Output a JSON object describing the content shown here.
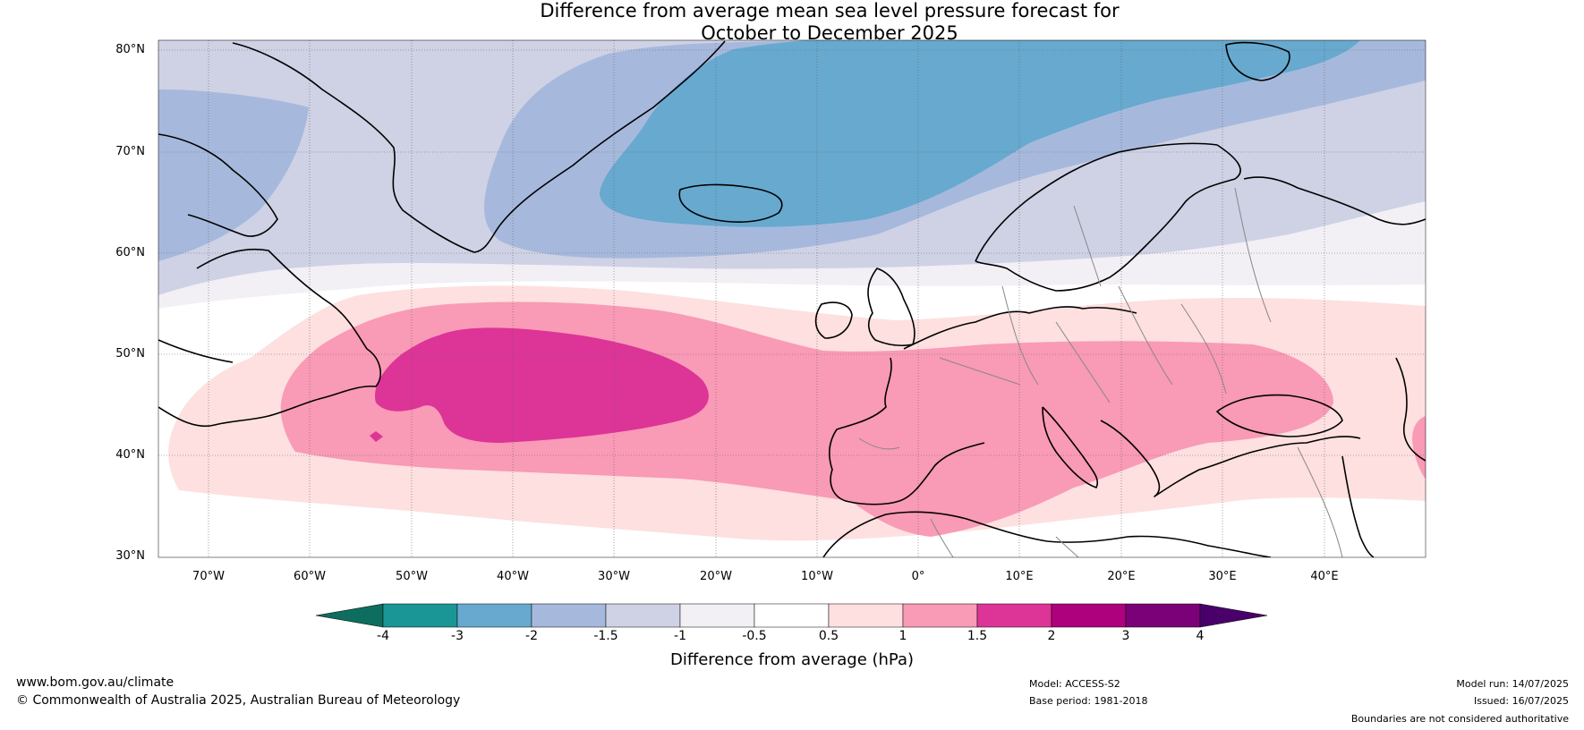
{
  "title": {
    "line1": "Difference from average mean sea level pressure forecast for",
    "line2": "October to December 2025"
  },
  "map": {
    "lat_labels": [
      "80°N",
      "70°N",
      "60°N",
      "50°N",
      "40°N",
      "30°N"
    ],
    "lon_labels": [
      "70°W",
      "60°W",
      "50°W",
      "40°W",
      "30°W",
      "20°W",
      "10°W",
      "0°",
      "10°E",
      "20°E",
      "30°E",
      "40°E"
    ],
    "lon_range": [
      -75,
      50
    ],
    "lat_range": [
      30,
      81
    ]
  },
  "colorbar": {
    "title": "Difference from average (hPa)",
    "ticks": [
      "-4",
      "-3",
      "-2",
      "-1.5",
      "-1",
      "-0.5",
      "0.5",
      "1",
      "1.5",
      "2",
      "3",
      "4"
    ],
    "colors": [
      "#1a9696",
      "#67a9cf",
      "#a6b9dc",
      "#cfd1e5",
      "#f2eff5",
      "#ffffff",
      "#fde0df",
      "#f99ab6",
      "#dd3497",
      "#ae017e",
      "#7a0177"
    ],
    "under_color": "#0d6e60",
    "over_color": "#49006a"
  },
  "colors": {
    "c_n2": "#67a9cf",
    "c_n15": "#a6b9dc",
    "c_n1": "#cfd1e5",
    "c_n05": "#f2eff5",
    "c_p05": "#fde0df",
    "c_p1": "#f99ab6",
    "c_p15": "#dd3497"
  },
  "footer": {
    "website": "www.bom.gov.au/climate",
    "copyright": "© Commonwealth of Australia 2025, Australian Bureau of Meteorology",
    "model": "Model: ACCESS-S2",
    "base_period": "Base period: 1981-2018",
    "model_run": "Model run: 14/07/2025",
    "issued": "Issued: 16/07/2025",
    "disclaimer": "Boundaries are not considered authoritative"
  }
}
